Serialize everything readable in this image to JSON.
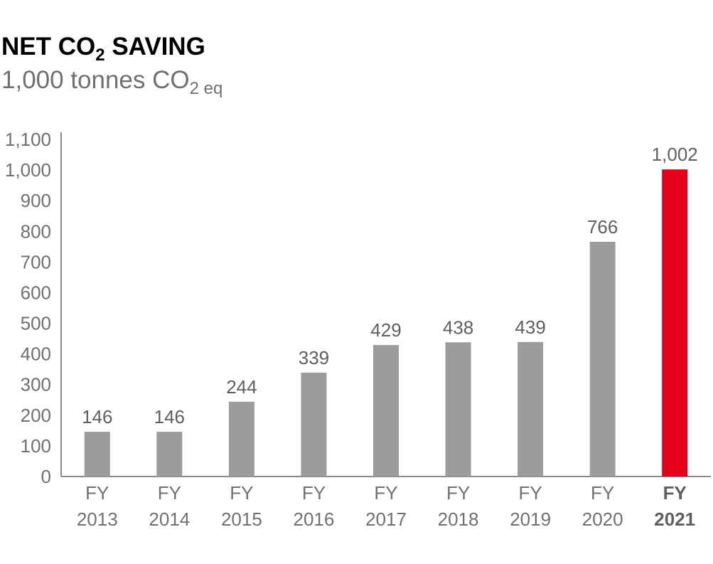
{
  "chart_data": {
    "type": "bar",
    "title": {
      "prefix": "NET CO",
      "subscript": "2",
      "suffix": " SAVING"
    },
    "subtitle": {
      "prefix": "1,000 tonnes CO",
      "subscript": "2 eq"
    },
    "categories": [
      {
        "line1": "FY",
        "line2": "2013"
      },
      {
        "line1": "FY",
        "line2": "2014"
      },
      {
        "line1": "FY",
        "line2": "2015"
      },
      {
        "line1": "FY",
        "line2": "2016"
      },
      {
        "line1": "FY",
        "line2": "2017"
      },
      {
        "line1": "FY",
        "line2": "2018"
      },
      {
        "line1": "FY",
        "line2": "2019"
      },
      {
        "line1": "FY",
        "line2": "2020"
      },
      {
        "line1": "FY",
        "line2": "2021"
      }
    ],
    "values": [
      146,
      146,
      244,
      339,
      429,
      438,
      439,
      766,
      1002
    ],
    "value_labels": [
      "146",
      "146",
      "244",
      "339",
      "429",
      "438",
      "439",
      "766",
      "1,002"
    ],
    "highlight_index": 8,
    "yticks": [
      0,
      100,
      200,
      300,
      400,
      500,
      600,
      700,
      800,
      900,
      1000,
      1100
    ],
    "ytick_labels": [
      "0",
      "100",
      "200",
      "300",
      "400",
      "500",
      "600",
      "700",
      "800",
      "900",
      "1,000",
      "1,100"
    ],
    "ylim": [
      0,
      1100
    ],
    "grid": false,
    "colors": {
      "bar": "#9c9c9b",
      "highlight": "#e2001a",
      "axis": "#8a8a8a"
    }
  }
}
